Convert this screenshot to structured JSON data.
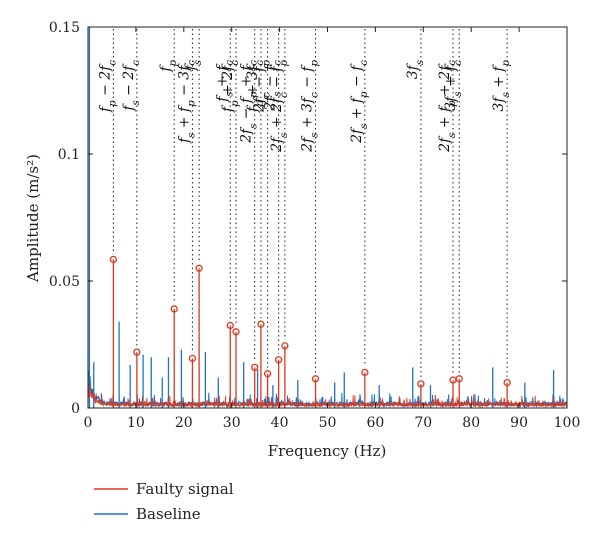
{
  "chart_data": {
    "type": "line",
    "xlabel": "Frequency (Hz)",
    "ylabel": "Amplitude (m/s²)",
    "xlim": [
      0,
      100
    ],
    "ylim": [
      0,
      0.15
    ],
    "xticks": [
      0,
      10,
      20,
      30,
      40,
      50,
      60,
      70,
      80,
      90,
      100
    ],
    "yticks": [
      0,
      0.05,
      0.1,
      0.15
    ],
    "ytick_labels": [
      "0",
      "0.05",
      "0.1",
      "0.15"
    ],
    "legend": {
      "position": "bottom-left",
      "entries": [
        "Faulty signal",
        "Baseline"
      ]
    },
    "colors": {
      "faulty": "#d9381e",
      "baseline": "#1f72c4"
    },
    "series": [
      {
        "name": "Faulty signal",
        "peaks": [
          {
            "x": 5.3,
            "y": 0.0585
          },
          {
            "x": 10.2,
            "y": 0.022
          },
          {
            "x": 18.0,
            "y": 0.039
          },
          {
            "x": 21.8,
            "y": 0.0195
          },
          {
            "x": 23.2,
            "y": 0.055
          },
          {
            "x": 29.7,
            "y": 0.0325
          },
          {
            "x": 30.9,
            "y": 0.03
          },
          {
            "x": 34.8,
            "y": 0.016
          },
          {
            "x": 36.1,
            "y": 0.033
          },
          {
            "x": 37.5,
            "y": 0.0135
          },
          {
            "x": 39.8,
            "y": 0.019
          },
          {
            "x": 41.1,
            "y": 0.0245
          },
          {
            "x": 47.5,
            "y": 0.0115
          },
          {
            "x": 57.8,
            "y": 0.014
          },
          {
            "x": 69.5,
            "y": 0.0095
          },
          {
            "x": 76.2,
            "y": 0.011
          },
          {
            "x": 77.5,
            "y": 0.0115
          },
          {
            "x": 87.5,
            "y": 0.01
          }
        ]
      },
      {
        "name": "Baseline",
        "peaks": [
          {
            "x": 0.3,
            "y": 0.15
          },
          {
            "x": 1.2,
            "y": 0.018
          },
          {
            "x": 6.5,
            "y": 0.034
          },
          {
            "x": 8.8,
            "y": 0.017
          },
          {
            "x": 11.5,
            "y": 0.021
          },
          {
            "x": 13.2,
            "y": 0.02
          },
          {
            "x": 15.5,
            "y": 0.012
          },
          {
            "x": 16.8,
            "y": 0.02
          },
          {
            "x": 19.5,
            "y": 0.023
          },
          {
            "x": 24.5,
            "y": 0.022
          },
          {
            "x": 27.2,
            "y": 0.012
          },
          {
            "x": 32.5,
            "y": 0.018
          },
          {
            "x": 35.4,
            "y": 0.015
          },
          {
            "x": 38.6,
            "y": 0.009
          },
          {
            "x": 43.8,
            "y": 0.011
          },
          {
            "x": 51.5,
            "y": 0.01
          },
          {
            "x": 53.5,
            "y": 0.014
          },
          {
            "x": 60.8,
            "y": 0.009
          },
          {
            "x": 67.8,
            "y": 0.016
          },
          {
            "x": 71.5,
            "y": 0.009
          },
          {
            "x": 84.5,
            "y": 0.016
          },
          {
            "x": 91.2,
            "y": 0.01
          },
          {
            "x": 97.2,
            "y": 0.015
          }
        ]
      }
    ],
    "annotations": [
      {
        "x": 5.3,
        "text": "f_p − 2f_c"
      },
      {
        "x": 10.2,
        "text": "f_s − 2f_c"
      },
      {
        "x": 18.0,
        "text": "f_p"
      },
      {
        "x": 21.8,
        "text": "f_s + f_p − 3f_c"
      },
      {
        "x": 23.2,
        "text": "f_s"
      },
      {
        "x": 29.7,
        "text": "f_s + f_c"
      },
      {
        "x": 30.9,
        "text": "f_p + 2f_c"
      },
      {
        "x": 34.8,
        "text": "2f_s − f_p + f_c"
      },
      {
        "x": 36.1,
        "text": "f_p + 3f_c"
      },
      {
        "x": 37.5,
        "text": "2f_c − f_p"
      },
      {
        "x": 39.8,
        "text": "2f_s − f_c"
      },
      {
        "x": 41.1,
        "text": "2f_s + 2f_c − f_p"
      },
      {
        "x": 47.5,
        "text": "2f_s + 3f_c − f_p"
      },
      {
        "x": 57.8,
        "text": "2f_s + f_p − f_c"
      },
      {
        "x": 69.5,
        "text": "3f_s"
      },
      {
        "x": 76.2,
        "text": "2f_s + f_p + 2f_c"
      },
      {
        "x": 77.5,
        "text": "3f_s + f_c"
      },
      {
        "x": 87.5,
        "text": "3f_s + f_p"
      }
    ]
  }
}
